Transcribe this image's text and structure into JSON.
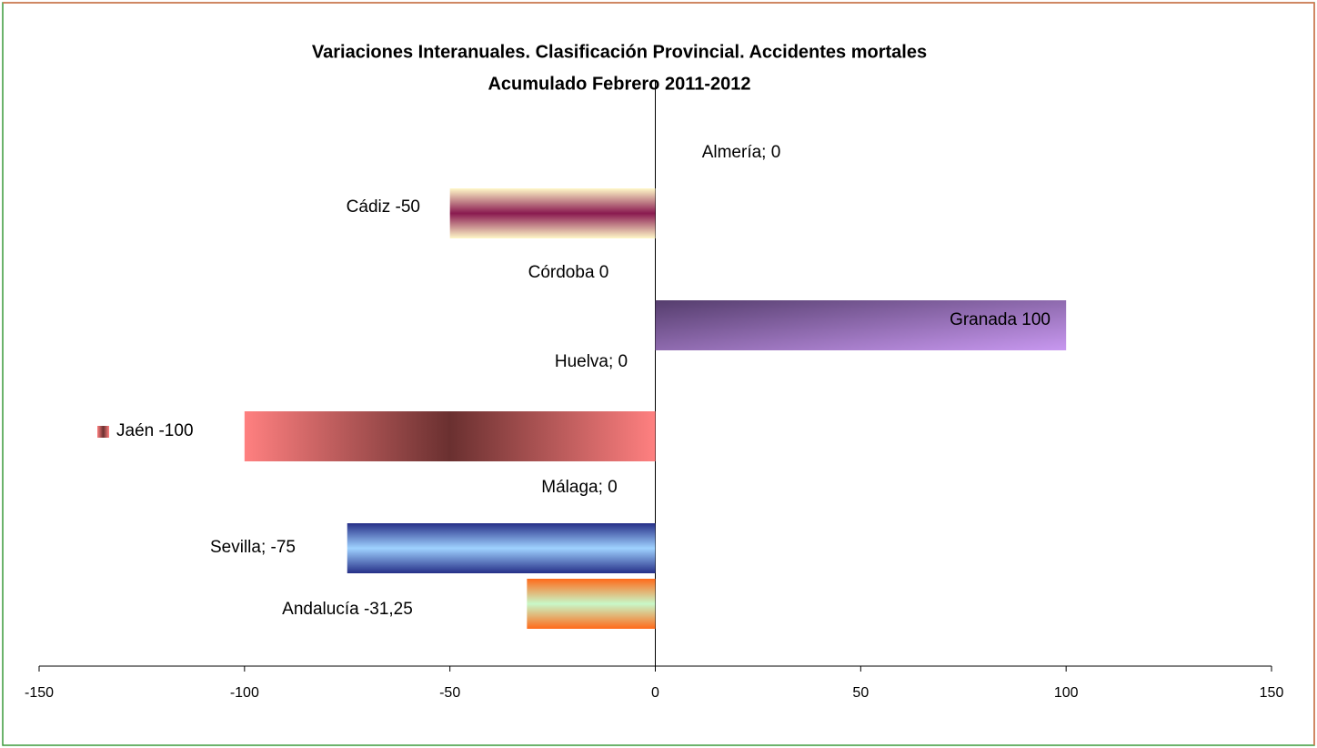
{
  "chart_data": {
    "type": "barh",
    "title": [
      "Variaciones Interanuales. Clasificación Provincial. Accidentes mortales",
      "Acumulado Febrero 2011-2012"
    ],
    "values": [
      0,
      -50,
      0,
      100,
      0,
      -100,
      0,
      -75,
      -31.25
    ],
    "value_labels": [
      "Almería; 0",
      "Cádiz -50",
      "Córdoba 0",
      "Granada 100",
      "Huelva; 0",
      "Jaén -100",
      "Málaga; 0",
      "Sevilla; -75",
      "Andalucía -31,25"
    ],
    "xlim": [
      -150,
      150
    ],
    "xticks": [
      -150,
      -100,
      -50,
      0,
      50,
      100,
      150
    ]
  }
}
